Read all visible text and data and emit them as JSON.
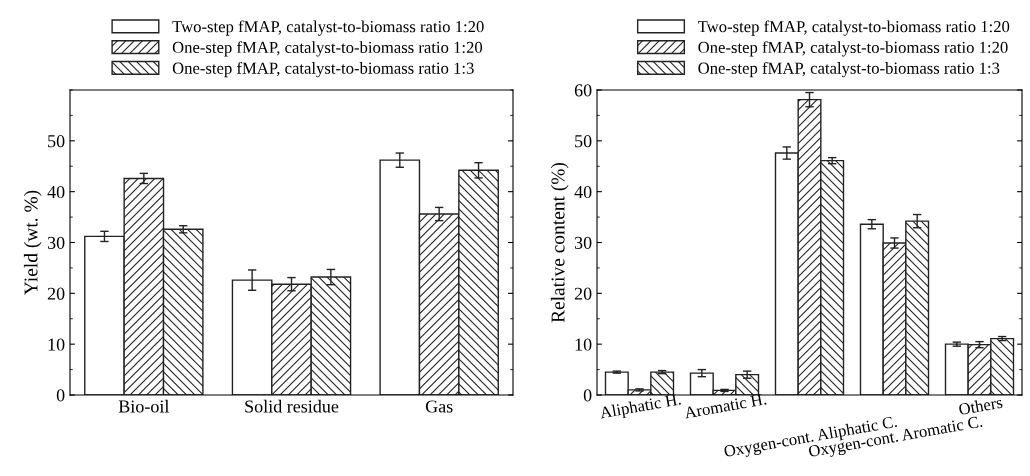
{
  "chart_data": [
    {
      "type": "bar",
      "ylabel": "Yield (wt. %)",
      "categories": [
        "Bio-oil",
        "Solid residue",
        "Gas"
      ],
      "ylim": [
        0,
        60
      ],
      "yticks": [
        0,
        10,
        20,
        30,
        40,
        50
      ],
      "legend": "top",
      "grid": false,
      "series": [
        {
          "name": "Two-step fMAP, catalyst-to-biomass ratio 1:20",
          "color": "#ffffff",
          "values": [
            31.2,
            22.6,
            46.2
          ],
          "errors": [
            1.0,
            2.0,
            1.4
          ]
        },
        {
          "name": "One-step fMAP, catalyst-to-biomass ratio 1:20",
          "color": "#222222",
          "values": [
            42.6,
            21.8,
            35.6
          ],
          "errors": [
            1.0,
            1.3,
            1.3
          ]
        },
        {
          "name": "One-step fMAP, catalyst-to-biomass ratio 1:3",
          "color": "#222222",
          "values": [
            32.6,
            23.2,
            44.2
          ],
          "errors": [
            0.7,
            1.5,
            1.5
          ]
        }
      ]
    },
    {
      "type": "bar",
      "ylabel": "Relative content (%)",
      "categories": [
        "Aliphatic H.",
        "Aromatic H.",
        "Oxygen-cont. Aliphatic C.",
        "Oxygen-cont. Aromatic C.",
        "Others"
      ],
      "ylim": [
        0,
        60
      ],
      "yticks": [
        0,
        10,
        20,
        30,
        40,
        50,
        60
      ],
      "legend": "top",
      "grid": false,
      "series": [
        {
          "name": "Two-step fMAP, catalyst-to-biomass ratio 1:20",
          "color": "#ffffff",
          "values": [
            4.5,
            4.3,
            47.6,
            33.6,
            10.0
          ],
          "errors": [
            0.2,
            0.7,
            1.2,
            0.9,
            0.4
          ]
        },
        {
          "name": "One-step fMAP, catalyst-to-biomass ratio 1:20",
          "color": "#222222",
          "values": [
            1.0,
            0.9,
            58.1,
            29.9,
            9.9
          ],
          "errors": [
            0.2,
            0.2,
            1.4,
            1.0,
            0.6
          ]
        },
        {
          "name": "One-step fMAP, catalyst-to-biomass ratio 1:3",
          "color": "#222222",
          "values": [
            4.5,
            4.0,
            46.1,
            34.2,
            11.1
          ],
          "errors": [
            0.3,
            0.7,
            0.6,
            1.3,
            0.4
          ]
        }
      ]
    }
  ]
}
